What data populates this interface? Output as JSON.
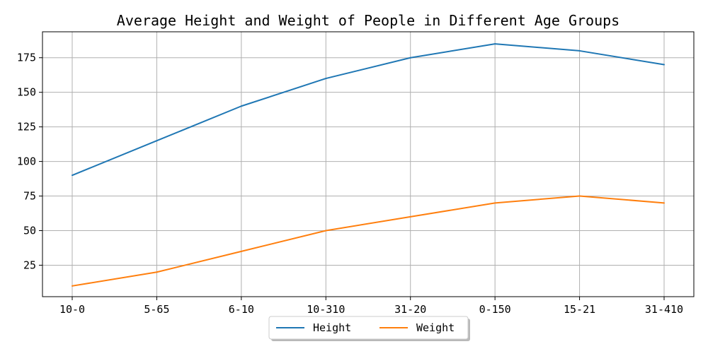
{
  "chart_data": {
    "type": "line",
    "title": "Average Height and Weight of People in Different Age Groups",
    "xlabel": "",
    "ylabel": "",
    "categories": [
      "10-0",
      "5-65",
      "6-10",
      "10-310",
      "31-20",
      "0-150",
      "15-21",
      "31-410"
    ],
    "series": [
      {
        "name": "Height",
        "color": "#1f77b4",
        "values": [
          90,
          115,
          140,
          160,
          175,
          185,
          180,
          170
        ]
      },
      {
        "name": "Weight",
        "color": "#ff7f0e",
        "values": [
          10,
          20,
          35,
          50,
          60,
          70,
          75,
          70
        ]
      }
    ],
    "yticks": [
      25,
      50,
      75,
      100,
      125,
      150,
      175
    ],
    "ylim": [
      2.25,
      193.75
    ],
    "grid": true,
    "legend_position": "bottom-center"
  }
}
